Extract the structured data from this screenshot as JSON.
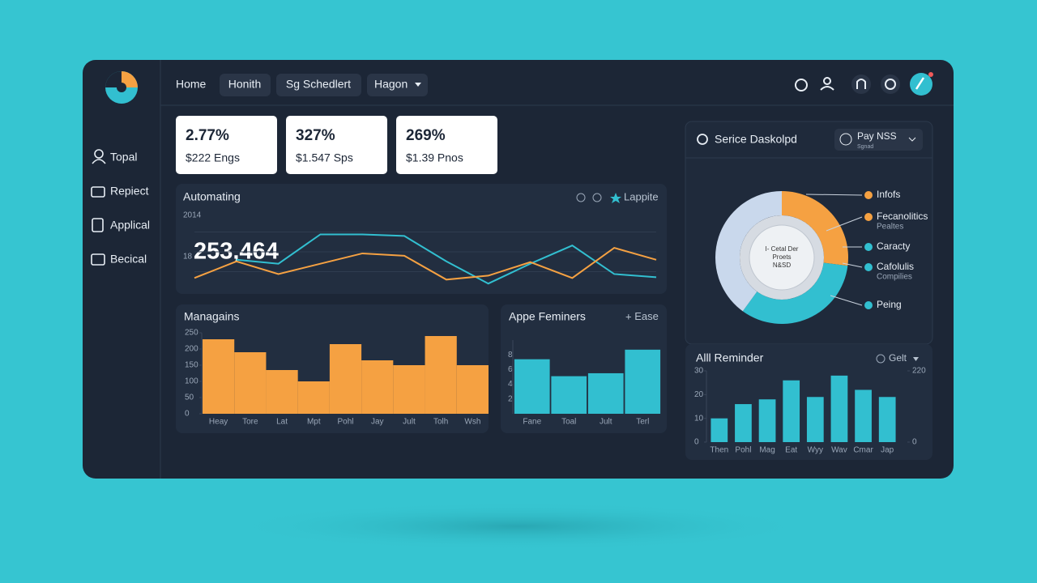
{
  "nav": {
    "items": [
      "Home",
      "Honith",
      "Sg Schedlert",
      "Hagon"
    ]
  },
  "sidebar": {
    "items": [
      "Topal",
      "Repiect",
      "Applical",
      "Becical"
    ]
  },
  "stats": [
    {
      "value": "2.77%",
      "label": "$222 Engs"
    },
    {
      "value": "327%",
      "label": "$1.547 Sps"
    },
    {
      "value": "269%",
      "label": "$1.39 Pnos"
    }
  ],
  "chart_data": [
    {
      "type": "line",
      "title": "Automating",
      "action": "Lappite",
      "annotations": [
        "2014",
        "18",
        "253,464"
      ],
      "ylim": [
        0,
        100
      ],
      "series": [
        {
          "name": "Teal",
          "color": "#32bfd0",
          "values": [
            null,
            40,
            35,
            72,
            72,
            70,
            38,
            10,
            35,
            58,
            22,
            18
          ]
        },
        {
          "name": "Orange",
          "color": "#f5a142",
          "values": [
            17,
            38,
            22,
            35,
            48,
            45,
            15,
            20,
            37,
            17,
            55,
            40
          ]
        }
      ]
    },
    {
      "type": "bar",
      "title": "Managains",
      "color": "#f5a142",
      "categories": [
        "Heay",
        "Tore",
        "Lat",
        "Mpt",
        "Pohl",
        "Jay",
        "Jult",
        "Tolh",
        "Wsh"
      ],
      "values": [
        230,
        190,
        135,
        100,
        215,
        165,
        150,
        240,
        150
      ],
      "ylim": [
        0,
        250
      ],
      "yticks": [
        0,
        50,
        100,
        150,
        200,
        250
      ]
    },
    {
      "type": "bar",
      "title": "Appe Feminers",
      "action": "Ease",
      "color": "#32bfd0",
      "categories": [
        "Fane",
        "Toal",
        "Jult",
        "Terl"
      ],
      "values": [
        7.4,
        5.1,
        5.5,
        8.7
      ],
      "ylim": [
        0,
        10
      ],
      "yticks": [
        2,
        4,
        6,
        8
      ]
    },
    {
      "type": "bar",
      "title": "Alll Reminder",
      "action": "Gelt",
      "color": "#32bfd0",
      "categories": [
        "Then",
        "Pohl",
        "Mag",
        "Eat",
        "Wyy",
        "Wav",
        "Cmar",
        "Jap"
      ],
      "values": [
        10,
        16,
        18,
        26,
        19,
        28,
        22,
        19
      ],
      "ylim": [
        0,
        30
      ],
      "yticks": [
        0,
        10,
        20,
        30
      ],
      "y2lim": [
        0,
        220
      ],
      "y2ticks": [
        0,
        220
      ]
    },
    {
      "type": "pie",
      "title": "Serice Daskolpd",
      "action": "Pay NSS",
      "subtitle": "Sgnad",
      "values": [
        27,
        33,
        40
      ],
      "colors": [
        "#f5a142",
        "#32bfd0",
        "#c9d8ec"
      ],
      "center_text": [
        "I- Cetal Der",
        "Proets",
        "N&SD"
      ],
      "legend": [
        {
          "name": "Infofs",
          "color": "#f5a142"
        },
        {
          "name": "Fecanolitics",
          "note": "Pealtes",
          "color": "#f5a142"
        },
        {
          "name": "Caracty",
          "color": "#32bfd0"
        },
        {
          "name": "Cafolulis",
          "note": "Compilies",
          "color": "#32bfd0"
        },
        {
          "name": "Peing",
          "color": "#32bfd0"
        }
      ]
    }
  ]
}
